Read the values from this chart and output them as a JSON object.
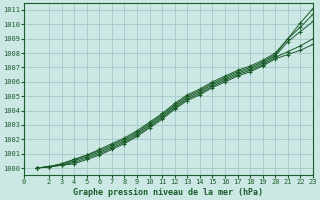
{
  "background_color": "#cce8e4",
  "grid_color": "#aacccc",
  "line_color": "#1a5c2a",
  "title": "Graphe pression niveau de la mer (hPa)",
  "xlim": [
    0,
    23
  ],
  "ylim": [
    999.5,
    1011.5
  ],
  "yticks": [
    1000,
    1001,
    1002,
    1003,
    1004,
    1005,
    1006,
    1007,
    1008,
    1009,
    1010,
    1011
  ],
  "xticks": [
    0,
    2,
    3,
    4,
    5,
    6,
    7,
    8,
    9,
    10,
    11,
    12,
    13,
    14,
    15,
    16,
    17,
    18,
    19,
    20,
    21,
    22,
    23
  ],
  "series": [
    {
      "x": [
        1,
        2,
        3,
        4,
        5,
        6,
        7,
        8,
        9,
        10,
        11,
        12,
        13,
        14,
        15,
        16,
        17,
        18,
        19,
        20,
        21,
        22,
        23
      ],
      "y": [
        1000.0,
        1000.1,
        1000.3,
        1000.6,
        1000.9,
        1001.3,
        1001.7,
        1002.1,
        1002.6,
        1003.2,
        1003.8,
        1004.5,
        1005.1,
        1005.5,
        1006.0,
        1006.4,
        1006.8,
        1007.1,
        1007.5,
        1008.0,
        1009.0,
        1010.1,
        1011.1
      ],
      "marker": "+"
    },
    {
      "x": [
        1,
        2,
        3,
        4,
        5,
        6,
        7,
        8,
        9,
        10,
        11,
        12,
        13,
        14,
        15,
        16,
        17,
        18,
        19,
        20,
        21,
        22,
        23
      ],
      "y": [
        1000.0,
        1000.1,
        1000.3,
        1000.6,
        1000.9,
        1001.2,
        1001.6,
        1002.0,
        1002.5,
        1003.1,
        1003.7,
        1004.4,
        1005.0,
        1005.4,
        1005.9,
        1006.3,
        1006.7,
        1007.0,
        1007.4,
        1007.9,
        1009.0,
        1009.8,
        1010.7
      ],
      "marker": "+"
    },
    {
      "x": [
        1,
        2,
        3,
        4,
        5,
        6,
        7,
        8,
        9,
        10,
        11,
        12,
        13,
        14,
        15,
        16,
        17,
        18,
        19,
        20,
        21,
        22,
        23
      ],
      "y": [
        1000.0,
        1000.1,
        1000.2,
        1000.5,
        1000.8,
        1001.1,
        1001.5,
        1001.9,
        1002.4,
        1003.0,
        1003.6,
        1004.3,
        1004.9,
        1005.3,
        1005.8,
        1006.2,
        1006.6,
        1006.9,
        1007.3,
        1007.8,
        1008.8,
        1009.5,
        1010.2
      ],
      "marker": "+"
    },
    {
      "x": [
        1,
        2,
        3,
        4,
        5,
        6,
        7,
        8,
        9,
        10,
        11,
        12,
        13,
        14,
        15,
        16,
        17,
        18,
        19,
        20,
        21,
        22,
        23
      ],
      "y": [
        1000.0,
        1000.1,
        1000.2,
        1000.4,
        1000.7,
        1001.0,
        1001.4,
        1001.8,
        1002.3,
        1002.9,
        1003.5,
        1004.2,
        1004.8,
        1005.2,
        1005.7,
        1006.1,
        1006.5,
        1006.8,
        1007.2,
        1007.7,
        1008.1,
        1008.5,
        1009.0
      ],
      "marker": "+"
    },
    {
      "x": [
        1,
        2,
        3,
        4,
        5,
        6,
        7,
        8,
        9,
        10,
        11,
        12,
        13,
        14,
        15,
        16,
        17,
        18,
        19,
        20,
        21,
        22,
        23
      ],
      "y": [
        1000.0,
        1000.1,
        1000.2,
        1000.3,
        1000.6,
        1000.9,
        1001.3,
        1001.7,
        1002.2,
        1002.8,
        1003.4,
        1004.1,
        1004.7,
        1005.1,
        1005.6,
        1006.0,
        1006.4,
        1006.7,
        1007.1,
        1007.6,
        1007.9,
        1008.2,
        1008.6
      ],
      "marker": "+"
    }
  ]
}
